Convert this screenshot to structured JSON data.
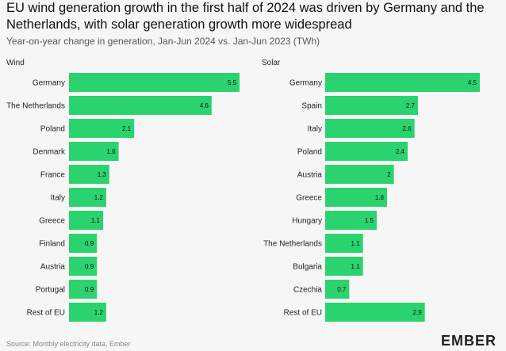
{
  "title": "EU wind generation growth in the first half of 2024 was driven by Germany and the Netherlands, with solar generation growth more widespread",
  "subtitle": "Year-on-year change in generation, Jan-Jun 2024 vs. Jan-Jun 2023 (TWh)",
  "source": "Source: Monthly electricity data, Ember",
  "logo": "EMBER",
  "colors": {
    "bar": "#2bd36f",
    "background": "#f6f6f6"
  },
  "chart_data": [
    {
      "type": "bar",
      "orientation": "horizontal",
      "title": "Wind",
      "categories": [
        "Germany",
        "The Netherlands",
        "Poland",
        "Denmark",
        "France",
        "Italy",
        "Greece",
        "Finland",
        "Austria",
        "Portugal",
        "Rest of EU"
      ],
      "values": [
        5.5,
        4.6,
        2.1,
        1.6,
        1.3,
        1.2,
        1.1,
        0.9,
        0.9,
        0.9,
        1.2
      ],
      "value_labels": [
        "5.5",
        "4.6",
        "2.1",
        "1.6",
        "1.3",
        "1.2",
        "1.1",
        "0.9",
        "0.9",
        "0.9",
        "1.2"
      ],
      "xlim": [
        0,
        5.5
      ]
    },
    {
      "type": "bar",
      "orientation": "horizontal",
      "title": "Solar",
      "categories": [
        "Germany",
        "Spain",
        "Italy",
        "Poland",
        "Austria",
        "Greece",
        "Hungary",
        "The Netherlands",
        "Bulgaria",
        "Czechia",
        "Rest of EU"
      ],
      "values": [
        4.5,
        2.7,
        2.6,
        2.4,
        2,
        1.8,
        1.5,
        1.1,
        1.1,
        0.7,
        2.9
      ],
      "value_labels": [
        "4.5",
        "2.7",
        "2.6",
        "2.4",
        "2",
        "1.8",
        "1.5",
        "1.1",
        "1.1",
        "0.7",
        "2.9"
      ],
      "xlim": [
        0,
        4.5
      ]
    }
  ]
}
